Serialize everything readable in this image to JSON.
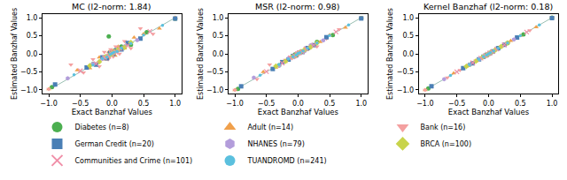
{
  "chart_data": [
    {
      "type": "scatter",
      "title": "MC (l2-norm: 1.84)",
      "xlabel": "Exact Banzhaf Values",
      "ylabel": "Estimated Banzhaf Values",
      "xlim": [
        -1.1,
        1.1
      ],
      "ylim": [
        -1.1,
        1.1
      ],
      "xticks": [
        {
          "value": -1,
          "label": "−1.0"
        },
        {
          "value": -0.5,
          "label": "−0.5"
        },
        {
          "value": 0,
          "label": "0.0"
        },
        {
          "value": 0.5,
          "label": "0.5"
        },
        {
          "value": 1,
          "label": "1.0"
        }
      ],
      "yticks": [
        {
          "value": -1,
          "label": "−1.0"
        },
        {
          "value": -0.5,
          "label": "−0.5"
        },
        {
          "value": 0,
          "label": "0.0"
        },
        {
          "value": 0.5,
          "label": "0.5"
        },
        {
          "value": 1,
          "label": "1.0"
        }
      ],
      "grid": false,
      "legend": "bottom",
      "series": [
        {
          "name": "Diabetes (n=8)",
          "color": "#4caf50",
          "marker": "circle",
          "x": [
            -0.95,
            -0.3,
            -0.05,
            0.05,
            0.15,
            0.3,
            0.55,
            1.0
          ],
          "y": [
            -0.92,
            -0.28,
            0.48,
            0.1,
            0.2,
            0.25,
            0.6,
            0.97
          ]
        },
        {
          "name": "Adult (n=14)",
          "color": "#f0a04b",
          "marker": "triangle-up",
          "x": [
            -1.0,
            -0.55,
            -0.35,
            -0.2,
            -0.1,
            -0.05,
            0.0,
            0.05,
            0.1,
            0.2,
            0.35,
            0.5,
            0.75,
            1.0
          ],
          "y": [
            -0.98,
            -0.45,
            -0.4,
            -0.1,
            -0.15,
            0.05,
            0.1,
            -0.05,
            0.2,
            0.15,
            0.45,
            0.55,
            0.7,
            1.0
          ]
        },
        {
          "name": "Bank (n=16)",
          "color": "#f4a0a0",
          "marker": "triangle-down",
          "x": [
            -1.0,
            -0.65,
            -0.45,
            -0.3,
            -0.2,
            -0.12,
            -0.06,
            -0.02,
            0.02,
            0.06,
            0.12,
            0.2,
            0.3,
            0.45,
            0.65,
            1.0
          ],
          "y": [
            -0.98,
            -0.3,
            -0.52,
            -0.15,
            -0.35,
            0.05,
            -0.15,
            0.12,
            -0.08,
            0.2,
            0.0,
            0.35,
            0.15,
            0.7,
            0.55,
            0.97
          ]
        },
        {
          "name": "German Credit (n=20)",
          "color": "#4a7fb5",
          "marker": "square",
          "x": [
            -0.9,
            -0.4,
            -0.25,
            -0.15,
            -0.08,
            -0.03,
            0.02,
            0.07,
            0.15,
            0.25,
            0.45,
            1.0
          ],
          "y": [
            -0.85,
            -0.38,
            -0.3,
            -0.1,
            -0.12,
            0.02,
            0.0,
            0.1,
            0.12,
            0.3,
            0.42,
            0.98
          ]
        },
        {
          "name": "NHANES (n=79)",
          "color": "#b39ddb",
          "marker": "hexagon",
          "x": [
            -0.7,
            -0.3,
            -0.15,
            -0.06,
            -0.02,
            0.01,
            0.04,
            0.1,
            0.2,
            0.4
          ],
          "y": [
            -0.68,
            -0.28,
            -0.14,
            -0.05,
            -0.03,
            0.02,
            0.05,
            0.09,
            0.21,
            0.38
          ]
        },
        {
          "name": "BRCA (n=100)",
          "color": "#c8d44b",
          "marker": "diamond",
          "x": [
            -0.35,
            -0.2,
            -0.1,
            -0.04,
            -0.01,
            0.01,
            0.04,
            0.1,
            0.2,
            0.3
          ],
          "y": [
            -0.33,
            -0.22,
            -0.08,
            -0.05,
            0.01,
            0.0,
            0.06,
            0.12,
            0.18,
            0.31
          ]
        },
        {
          "name": "Communities and Crime (n=101)",
          "color": "#f08fa8",
          "marker": "x",
          "x": [
            -0.5,
            -0.25,
            -0.12,
            -0.05,
            -0.01,
            0.02,
            0.06,
            0.13,
            0.25,
            0.6
          ],
          "y": [
            -0.47,
            -0.27,
            -0.1,
            -0.07,
            0.01,
            0.04,
            0.05,
            0.15,
            0.23,
            0.62
          ]
        },
        {
          "name": "TUANDROMD (n=241)",
          "color": "#5bc0de",
          "marker": "point",
          "x": [
            -0.6,
            -0.3,
            -0.15,
            -0.08,
            -0.03,
            0.0,
            0.03,
            0.08,
            0.15,
            0.3,
            0.5,
            0.8
          ],
          "y": [
            -0.58,
            -0.31,
            -0.13,
            -0.09,
            -0.02,
            0.01,
            0.04,
            0.07,
            0.16,
            0.29,
            0.52,
            0.79
          ]
        }
      ]
    },
    {
      "type": "scatter",
      "title": "MSR (l2-norm: 0.98)",
      "xlabel": "Exact Banzhaf Values",
      "ylabel": "Estimated Banzhaf Values",
      "xlim": [
        -1.1,
        1.1
      ],
      "ylim": [
        -1.1,
        1.1
      ],
      "xticks": [
        {
          "value": -1,
          "label": "−1.0"
        },
        {
          "value": -0.5,
          "label": "−0.5"
        },
        {
          "value": 0,
          "label": "0.0"
        },
        {
          "value": 0.5,
          "label": "0.5"
        },
        {
          "value": 1,
          "label": "1.0"
        }
      ],
      "yticks": [
        {
          "value": -1,
          "label": "−1.0"
        },
        {
          "value": -0.5,
          "label": "−0.5"
        },
        {
          "value": 0,
          "label": "0.0"
        },
        {
          "value": 0.5,
          "label": "0.5"
        },
        {
          "value": 1,
          "label": "1.0"
        }
      ],
      "grid": false,
      "legend": "bottom",
      "series": [
        {
          "name": "Diabetes (n=8)",
          "color": "#4caf50",
          "marker": "circle",
          "x": [
            -0.95,
            -0.3,
            -0.05,
            0.05,
            0.15,
            0.3,
            0.55,
            1.0
          ],
          "y": [
            -0.97,
            -0.32,
            -0.02,
            0.07,
            0.14,
            0.33,
            0.52,
            0.99
          ]
        },
        {
          "name": "Adult (n=14)",
          "color": "#f0a04b",
          "marker": "triangle-up",
          "x": [
            -1.0,
            -0.55,
            -0.35,
            -0.2,
            -0.1,
            -0.05,
            0.0,
            0.05,
            0.1,
            0.2,
            0.35,
            0.5,
            0.75,
            1.0
          ],
          "y": [
            -1.0,
            -0.5,
            -0.38,
            -0.22,
            -0.08,
            -0.02,
            0.03,
            0.07,
            0.08,
            0.22,
            0.33,
            0.52,
            0.73,
            0.99
          ]
        },
        {
          "name": "Bank (n=16)",
          "color": "#f4a0a0",
          "marker": "triangle-down",
          "x": [
            -1.0,
            -0.65,
            -0.45,
            -0.3,
            -0.2,
            -0.12,
            -0.06,
            -0.02,
            0.02,
            0.06,
            0.12,
            0.2,
            0.3,
            0.45,
            0.65,
            1.0
          ],
          "y": [
            -1.0,
            -0.7,
            -0.3,
            -0.33,
            -0.17,
            -0.1,
            -0.09,
            0.0,
            0.03,
            0.04,
            0.15,
            0.17,
            0.2,
            0.42,
            0.68,
            1.0
          ]
        },
        {
          "name": "German Credit (n=20)",
          "color": "#4a7fb5",
          "marker": "square",
          "x": [
            -0.9,
            -0.4,
            -0.25,
            -0.15,
            -0.08,
            -0.03,
            0.02,
            0.07,
            0.15,
            0.25,
            0.45,
            1.0
          ],
          "y": [
            -0.9,
            -0.42,
            -0.23,
            -0.16,
            -0.06,
            -0.04,
            0.03,
            0.05,
            0.16,
            0.24,
            0.46,
            0.98
          ]
        },
        {
          "name": "NHANES (n=79)",
          "color": "#b39ddb",
          "marker": "hexagon",
          "x": [
            -0.7,
            -0.3,
            -0.15,
            -0.06,
            -0.02,
            0.01,
            0.04,
            0.1,
            0.2,
            0.4
          ],
          "y": [
            -0.66,
            -0.33,
            -0.12,
            -0.09,
            0.01,
            0.03,
            0.06,
            0.07,
            0.24,
            0.37
          ]
        },
        {
          "name": "BRCA (n=100)",
          "color": "#c8d44b",
          "marker": "diamond",
          "x": [
            -0.35,
            -0.2,
            -0.1,
            -0.04,
            -0.01,
            0.01,
            0.04,
            0.1,
            0.2,
            0.3
          ],
          "y": [
            -0.34,
            -0.21,
            -0.09,
            -0.05,
            0.0,
            0.02,
            0.05,
            0.11,
            0.19,
            0.3
          ]
        },
        {
          "name": "Communities and Crime (n=101)",
          "color": "#f08fa8",
          "marker": "x",
          "x": [
            -0.5,
            -0.25,
            -0.12,
            -0.05,
            -0.01,
            0.02,
            0.06,
            0.13,
            0.25,
            0.6
          ],
          "y": [
            -0.49,
            -0.26,
            -0.11,
            -0.06,
            0.0,
            0.03,
            0.06,
            0.14,
            0.24,
            0.61
          ]
        },
        {
          "name": "TUANDROMD (n=241)",
          "color": "#5bc0de",
          "marker": "point",
          "x": [
            -0.6,
            -0.3,
            -0.15,
            -0.08,
            -0.03,
            0.0,
            0.03,
            0.08,
            0.15,
            0.3,
            0.5,
            0.8
          ],
          "y": [
            -0.59,
            -0.3,
            -0.14,
            -0.08,
            -0.03,
            0.01,
            0.03,
            0.08,
            0.15,
            0.3,
            0.51,
            0.8
          ]
        }
      ]
    },
    {
      "type": "scatter",
      "title": "Kernel Banzhaf (l2-norm: 0.18)",
      "xlabel": "Exact Banzhaf Values",
      "ylabel": "Estimated Banzhaf Values",
      "xlim": [
        -1.1,
        1.1
      ],
      "ylim": [
        -1.1,
        1.1
      ],
      "xticks": [
        {
          "value": -1,
          "label": "−1.0"
        },
        {
          "value": -0.5,
          "label": "−0.5"
        },
        {
          "value": 0,
          "label": "0.0"
        },
        {
          "value": 0.5,
          "label": "0.5"
        },
        {
          "value": 1,
          "label": "1.0"
        }
      ],
      "yticks": [
        {
          "value": -1,
          "label": "−1.0"
        },
        {
          "value": -0.5,
          "label": "−0.5"
        },
        {
          "value": 0,
          "label": "0.0"
        },
        {
          "value": 0.5,
          "label": "0.5"
        },
        {
          "value": 1,
          "label": "1.0"
        }
      ],
      "grid": false,
      "legend": "bottom",
      "series": [
        {
          "name": "Diabetes (n=8)",
          "color": "#4caf50",
          "marker": "circle",
          "x": [
            -0.95,
            -0.3,
            -0.05,
            0.05,
            0.15,
            0.3,
            0.55,
            1.0
          ],
          "y": [
            -0.96,
            -0.3,
            -0.04,
            0.05,
            0.16,
            0.3,
            0.54,
            1.0
          ]
        },
        {
          "name": "Adult (n=14)",
          "color": "#f0a04b",
          "marker": "triangle-up",
          "x": [
            -1.0,
            -0.55,
            -0.35,
            -0.2,
            -0.1,
            -0.05,
            0.0,
            0.05,
            0.1,
            0.2,
            0.35,
            0.5,
            0.75,
            1.0
          ],
          "y": [
            -1.0,
            -0.54,
            -0.35,
            -0.21,
            -0.1,
            -0.05,
            0.01,
            0.05,
            0.1,
            0.2,
            0.36,
            0.5,
            0.74,
            1.0
          ]
        },
        {
          "name": "Bank (n=16)",
          "color": "#f4a0a0",
          "marker": "triangle-down",
          "x": [
            -1.0,
            -0.65,
            -0.45,
            -0.3,
            -0.2,
            -0.12,
            -0.06,
            -0.02,
            0.02,
            0.06,
            0.12,
            0.2,
            0.3,
            0.45,
            0.65,
            1.0
          ],
          "y": [
            -1.0,
            -0.66,
            -0.45,
            -0.3,
            -0.19,
            -0.12,
            -0.07,
            -0.02,
            0.02,
            0.06,
            0.13,
            0.2,
            0.31,
            0.45,
            0.65,
            1.0
          ]
        },
        {
          "name": "German Credit (n=20)",
          "color": "#4a7fb5",
          "marker": "square",
          "x": [
            -0.9,
            -0.4,
            -0.25,
            -0.15,
            -0.08,
            -0.03,
            0.02,
            0.07,
            0.15,
            0.25,
            0.45,
            1.0
          ],
          "y": [
            -0.9,
            -0.4,
            -0.26,
            -0.15,
            -0.08,
            -0.03,
            0.02,
            0.07,
            0.15,
            0.25,
            0.45,
            0.99
          ]
        },
        {
          "name": "NHANES (n=79)",
          "color": "#b39ddb",
          "marker": "hexagon",
          "x": [
            -0.7,
            -0.3,
            -0.15,
            -0.06,
            -0.02,
            0.01,
            0.04,
            0.1,
            0.2,
            0.4
          ],
          "y": [
            -0.7,
            -0.3,
            -0.15,
            -0.06,
            -0.02,
            0.01,
            0.04,
            0.1,
            0.2,
            0.4
          ]
        },
        {
          "name": "BRCA (n=100)",
          "color": "#c8d44b",
          "marker": "diamond",
          "x": [
            -0.35,
            -0.2,
            -0.1,
            -0.04,
            -0.01,
            0.01,
            0.04,
            0.1,
            0.2,
            0.3
          ],
          "y": [
            -0.35,
            -0.2,
            -0.1,
            -0.04,
            -0.01,
            0.01,
            0.04,
            0.1,
            0.2,
            0.3
          ]
        },
        {
          "name": "Communities and Crime (n=101)",
          "color": "#f08fa8",
          "marker": "x",
          "x": [
            -0.5,
            -0.25,
            -0.12,
            -0.05,
            -0.01,
            0.02,
            0.06,
            0.13,
            0.25,
            0.6
          ],
          "y": [
            -0.5,
            -0.25,
            -0.12,
            -0.05,
            -0.01,
            0.02,
            0.06,
            0.13,
            0.25,
            0.6
          ]
        },
        {
          "name": "TUANDROMD (n=241)",
          "color": "#5bc0de",
          "marker": "point",
          "x": [
            -0.6,
            -0.3,
            -0.15,
            -0.08,
            -0.03,
            0.0,
            0.03,
            0.08,
            0.15,
            0.3,
            0.5,
            0.8
          ],
          "y": [
            -0.6,
            -0.3,
            -0.15,
            -0.08,
            -0.03,
            0.0,
            0.03,
            0.08,
            0.15,
            0.3,
            0.5,
            0.8
          ]
        }
      ]
    }
  ]
}
